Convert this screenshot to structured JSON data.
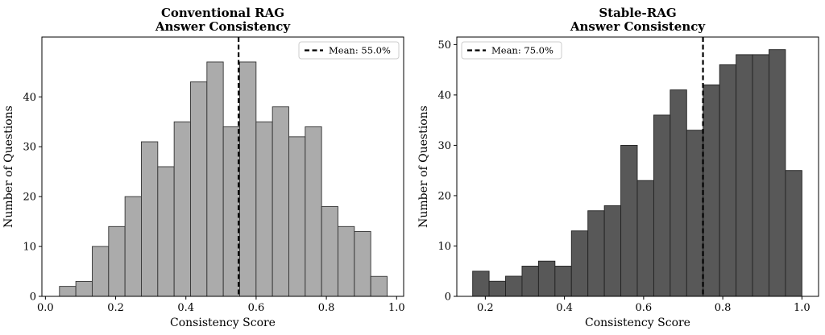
{
  "chart_data": [
    {
      "type": "bar",
      "title_lines": [
        "Conventional RAG",
        "Answer Consistency"
      ],
      "xlabel": "Consistency Score",
      "ylabel": "Number of Questions",
      "xlim": [
        -0.01,
        1.02
      ],
      "ylim": [
        0,
        52
      ],
      "xticks": [
        0.0,
        0.2,
        0.4,
        0.6,
        0.8,
        1.0
      ],
      "xtick_labels": [
        "0.0",
        "0.2",
        "0.4",
        "0.6",
        "0.8",
        "1.0"
      ],
      "yticks": [
        0,
        10,
        20,
        30,
        40
      ],
      "ytick_labels": [
        "0",
        "10",
        "20",
        "30",
        "40"
      ],
      "bin_start": 0.04,
      "bin_width": 0.04665,
      "counts": [
        2,
        3,
        10,
        14,
        20,
        31,
        26,
        35,
        43,
        47,
        34,
        47,
        35,
        38,
        32,
        34,
        18,
        14,
        13,
        4
      ],
      "bar_color": "#ababab",
      "edge_color": "#333333",
      "mean_value": 0.55,
      "legend": {
        "label": "Mean: 55.0%",
        "placement": "upper right"
      }
    },
    {
      "type": "bar",
      "title_lines": [
        "Stable-RAG",
        "Answer Consistency"
      ],
      "xlabel": "Consistency Score",
      "ylabel": "Number of Questions",
      "xlim": [
        0.128,
        1.042
      ],
      "ylim": [
        0,
        51.5
      ],
      "xticks": [
        0.2,
        0.4,
        0.6,
        0.8,
        1.0
      ],
      "xtick_labels": [
        "0.2",
        "0.4",
        "0.6",
        "0.8",
        "1.0"
      ],
      "yticks": [
        0,
        10,
        20,
        30,
        40,
        50
      ],
      "ytick_labels": [
        "0",
        "10",
        "20",
        "30",
        "40",
        "50"
      ],
      "bin_start": 0.168,
      "bin_width": 0.0416,
      "counts": [
        5,
        3,
        4,
        6,
        7,
        6,
        13,
        17,
        18,
        30,
        23,
        36,
        41,
        33,
        42,
        46,
        48,
        48,
        49,
        25
      ],
      "bar_color": "#585858",
      "edge_color": "#222222",
      "mean_value": 0.75,
      "legend": {
        "label": "Mean: 75.0%",
        "placement": "upper left"
      }
    }
  ]
}
